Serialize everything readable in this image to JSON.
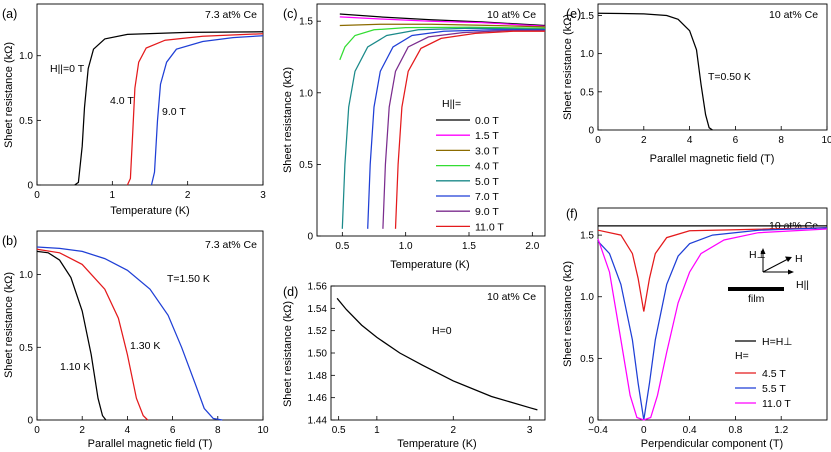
{
  "panels": {
    "a": {
      "label": "(a)",
      "corner_text": "7.3 at% Ce",
      "xlabel": "Temperature (K)",
      "ylabel": "Sheet resistance (kΩ)",
      "xlim": [
        0,
        3
      ],
      "ylim": [
        0,
        1.4
      ],
      "xticks": [
        "0",
        "1",
        "2",
        "3"
      ],
      "yticks": [
        "0",
        "0.5",
        "1.0"
      ],
      "annotations": [
        "H||=0 T",
        "4.0 T",
        "9.0 T"
      ],
      "series": [
        {
          "name": "0 T",
          "color": "#000000",
          "values": [
            [
              0.5,
              0
            ],
            [
              0.55,
              0.02
            ],
            [
              0.6,
              0.3
            ],
            [
              0.63,
              0.6
            ],
            [
              0.68,
              0.9
            ],
            [
              0.75,
              1.05
            ],
            [
              0.9,
              1.13
            ],
            [
              1.2,
              1.165
            ],
            [
              2,
              1.18
            ],
            [
              3,
              1.185
            ]
          ]
        },
        {
          "name": "4.0 T",
          "color": "#e41a1c",
          "values": [
            [
              1.2,
              0
            ],
            [
              1.24,
              0.05
            ],
            [
              1.27,
              0.4
            ],
            [
              1.3,
              0.75
            ],
            [
              1.35,
              0.95
            ],
            [
              1.45,
              1.06
            ],
            [
              1.7,
              1.12
            ],
            [
              2.2,
              1.15
            ],
            [
              3,
              1.17
            ]
          ]
        },
        {
          "name": "9.0 T",
          "color": "#1f3fd6",
          "values": [
            [
              1.52,
              0
            ],
            [
              1.56,
              0.1
            ],
            [
              1.6,
              0.5
            ],
            [
              1.64,
              0.78
            ],
            [
              1.72,
              0.95
            ],
            [
              1.85,
              1.05
            ],
            [
              2.2,
              1.11
            ],
            [
              2.6,
              1.14
            ],
            [
              3,
              1.155
            ]
          ]
        }
      ]
    },
    "b": {
      "label": "(b)",
      "corner_text": "7.3 at% Ce",
      "xlabel": "Parallel magnetic field (T)",
      "ylabel": "Sheet resistance (kΩ)",
      "xlim": [
        0,
        10
      ],
      "ylim": [
        0,
        1.3
      ],
      "xticks": [
        "0",
        "2",
        "4",
        "6",
        "8",
        "10"
      ],
      "yticks": [
        "0",
        "0.5",
        "1.0"
      ],
      "annotations": [
        "T=1.50 K",
        "1.30 K",
        "1.10 K"
      ],
      "series": [
        {
          "name": "1.10 K",
          "color": "#000000",
          "values": [
            [
              0,
              1.16
            ],
            [
              0.5,
              1.15
            ],
            [
              1,
              1.1
            ],
            [
              1.5,
              0.98
            ],
            [
              2,
              0.75
            ],
            [
              2.4,
              0.45
            ],
            [
              2.7,
              0.15
            ],
            [
              2.9,
              0.03
            ],
            [
              3.05,
              0
            ]
          ]
        },
        {
          "name": "1.30 K",
          "color": "#e41a1c",
          "values": [
            [
              0,
              1.175
            ],
            [
              1,
              1.15
            ],
            [
              2,
              1.07
            ],
            [
              3,
              0.9
            ],
            [
              3.6,
              0.7
            ],
            [
              4,
              0.45
            ],
            [
              4.4,
              0.15
            ],
            [
              4.7,
              0.03
            ],
            [
              4.9,
              0
            ]
          ]
        },
        {
          "name": "1.50 K",
          "color": "#1f3fd6",
          "values": [
            [
              0,
              1.19
            ],
            [
              1,
              1.18
            ],
            [
              2,
              1.16
            ],
            [
              3,
              1.11
            ],
            [
              4,
              1.03
            ],
            [
              5,
              0.9
            ],
            [
              5.8,
              0.72
            ],
            [
              6.4,
              0.5
            ],
            [
              7,
              0.25
            ],
            [
              7.4,
              0.08
            ],
            [
              7.8,
              0.01
            ],
            [
              8.2,
              0
            ]
          ]
        }
      ]
    },
    "c": {
      "label": "(c)",
      "corner_text": "10 at% Ce",
      "xlabel": "Temperature (K)",
      "ylabel": "Sheet resistance (kΩ)",
      "xlim": [
        0.3,
        2.1
      ],
      "ylim": [
        0,
        1.62
      ],
      "xticks": [
        "0.5",
        "1.0",
        "1.5",
        "2.0"
      ],
      "yticks": [
        "0",
        "0.5",
        "1.0",
        "1.5"
      ],
      "legend_title": "H||=",
      "series": [
        {
          "name": "0.0 T",
          "color": "#000000",
          "values": [
            [
              0.48,
              1.55
            ],
            [
              0.8,
              1.53
            ],
            [
              1.2,
              1.51
            ],
            [
              1.6,
              1.495
            ],
            [
              2.1,
              1.47
            ]
          ]
        },
        {
          "name": "1.5 T",
          "color": "#ff00ff",
          "values": [
            [
              0.48,
              1.53
            ],
            [
              0.8,
              1.515
            ],
            [
              1.2,
              1.5
            ],
            [
              1.6,
              1.49
            ],
            [
              2.1,
              1.465
            ]
          ]
        },
        {
          "name": "3.0 T",
          "color": "#8b6b00",
          "values": [
            [
              0.48,
              1.47
            ],
            [
              0.8,
              1.478
            ],
            [
              1.2,
              1.478
            ],
            [
              1.6,
              1.472
            ],
            [
              2.1,
              1.46
            ]
          ]
        },
        {
          "name": "4.0 T",
          "color": "#33dd33",
          "values": [
            [
              0.48,
              1.23
            ],
            [
              0.52,
              1.32
            ],
            [
              0.6,
              1.4
            ],
            [
              0.75,
              1.44
            ],
            [
              1.0,
              1.455
            ],
            [
              1.5,
              1.458
            ],
            [
              2.1,
              1.45
            ]
          ]
        },
        {
          "name": "5.0 T",
          "color": "#1b8a8a",
          "values": [
            [
              0.5,
              0.05
            ],
            [
              0.52,
              0.5
            ],
            [
              0.55,
              0.9
            ],
            [
              0.6,
              1.15
            ],
            [
              0.7,
              1.32
            ],
            [
              0.85,
              1.4
            ],
            [
              1.1,
              1.44
            ],
            [
              1.5,
              1.45
            ],
            [
              2.1,
              1.445
            ]
          ]
        },
        {
          "name": "7.0 T",
          "color": "#1f3fd6",
          "values": [
            [
              0.7,
              0.05
            ],
            [
              0.72,
              0.5
            ],
            [
              0.75,
              0.9
            ],
            [
              0.8,
              1.15
            ],
            [
              0.9,
              1.32
            ],
            [
              1.05,
              1.4
            ],
            [
              1.3,
              1.43
            ],
            [
              1.7,
              1.44
            ],
            [
              2.1,
              1.44
            ]
          ]
        },
        {
          "name": "9.0 T",
          "color": "#7b2d8e",
          "values": [
            [
              0.82,
              0.05
            ],
            [
              0.84,
              0.5
            ],
            [
              0.87,
              0.9
            ],
            [
              0.92,
              1.15
            ],
            [
              1.02,
              1.32
            ],
            [
              1.18,
              1.39
            ],
            [
              1.45,
              1.42
            ],
            [
              1.8,
              1.435
            ],
            [
              2.1,
              1.435
            ]
          ]
        },
        {
          "name": "11.0 T",
          "color": "#e41a1c",
          "values": [
            [
              0.92,
              0.05
            ],
            [
              0.94,
              0.5
            ],
            [
              0.97,
              0.9
            ],
            [
              1.02,
              1.15
            ],
            [
              1.12,
              1.31
            ],
            [
              1.28,
              1.38
            ],
            [
              1.55,
              1.415
            ],
            [
              1.85,
              1.43
            ],
            [
              2.1,
              1.43
            ]
          ]
        }
      ]
    },
    "d": {
      "label": "(d)",
      "corner_text": "10 at% Ce",
      "xlabel": "Temperature (K)",
      "ylabel": "Sheet resistance (kΩ)",
      "xlim": [
        0.4,
        3.2
      ],
      "ylim": [
        1.44,
        1.56
      ],
      "xticks": [
        "0.5",
        "1",
        "2",
        "3"
      ],
      "yticks": [
        "1.44",
        "1.46",
        "1.48",
        "1.50",
        "1.52",
        "1.54",
        "1.56"
      ],
      "annotations": [
        "H=0"
      ],
      "series": [
        {
          "name": "H=0",
          "color": "#000000",
          "values": [
            [
              0.48,
              1.549
            ],
            [
              0.6,
              1.539
            ],
            [
              0.8,
              1.525
            ],
            [
              1.0,
              1.514
            ],
            [
              1.3,
              1.5
            ],
            [
              1.6,
              1.489
            ],
            [
              2.0,
              1.475
            ],
            [
              2.5,
              1.461
            ],
            [
              3.0,
              1.451
            ],
            [
              3.1,
              1.449
            ]
          ]
        }
      ]
    },
    "e": {
      "label": "(e)",
      "corner_text": "10 at% Ce",
      "xlabel": "Parallel magnetic field (T)",
      "ylabel": "Sheet resistance (kΩ)",
      "xlim": [
        0,
        10
      ],
      "ylim": [
        0,
        1.65
      ],
      "xticks": [
        "0",
        "2",
        "4",
        "6",
        "8",
        "10"
      ],
      "yticks": [
        "0",
        "0.5",
        "1.0",
        "1.5"
      ],
      "annotations": [
        "T=0.50 K"
      ],
      "series": [
        {
          "name": "0.50 K",
          "color": "#000000",
          "values": [
            [
              0,
              1.53
            ],
            [
              1,
              1.525
            ],
            [
              2,
              1.52
            ],
            [
              3,
              1.5
            ],
            [
              3.5,
              1.45
            ],
            [
              4,
              1.3
            ],
            [
              4.3,
              1.05
            ],
            [
              4.5,
              0.6
            ],
            [
              4.7,
              0.2
            ],
            [
              4.85,
              0.03
            ],
            [
              5,
              0
            ]
          ]
        }
      ]
    },
    "f": {
      "label": "(f)",
      "corner_text": "10 at% Ce",
      "xlabel": "Perpendicular component (T)",
      "ylabel": "Sheet resistance (kΩ)",
      "xlim": [
        -0.4,
        1.6
      ],
      "ylim": [
        0,
        1.72
      ],
      "xticks": [
        "−0.4",
        "0",
        "0.4",
        "0.8",
        "1.2"
      ],
      "yticks": [
        "0",
        "0.5",
        "1.0",
        "1.5"
      ],
      "legend": {
        "perp_label": "H=H⊥",
        "title": "H=",
        "entries": [
          "4.5 T",
          "5.5 T",
          "11.0 T"
        ]
      },
      "inset": {
        "h_perp": "H⊥",
        "h": "H",
        "h_par": "H||",
        "film": "film"
      },
      "series": [
        {
          "name": "H=H⊥",
          "color": "#000000",
          "values": [
            [
              -0.4,
              1.575
            ],
            [
              1.6,
              1.575
            ]
          ]
        },
        {
          "name": "4.5 T",
          "color": "#e41a1c",
          "values": [
            [
              -0.4,
              1.54
            ],
            [
              -0.2,
              1.5
            ],
            [
              -0.1,
              1.35
            ],
            [
              -0.05,
              1.15
            ],
            [
              0,
              0.88
            ],
            [
              0.05,
              1.15
            ],
            [
              0.1,
              1.35
            ],
            [
              0.2,
              1.48
            ],
            [
              0.4,
              1.535
            ],
            [
              1.6,
              1.56
            ]
          ]
        },
        {
          "name": "5.5 T",
          "color": "#1f3fd6",
          "values": [
            [
              -0.4,
              1.45
            ],
            [
              -0.3,
              1.35
            ],
            [
              -0.2,
              1.1
            ],
            [
              -0.1,
              0.65
            ],
            [
              -0.05,
              0.3
            ],
            [
              0,
              0
            ],
            [
              0.05,
              0.3
            ],
            [
              0.1,
              0.65
            ],
            [
              0.2,
              1.1
            ],
            [
              0.3,
              1.33
            ],
            [
              0.4,
              1.43
            ],
            [
              0.6,
              1.5
            ],
            [
              1.0,
              1.54
            ],
            [
              1.6,
              1.56
            ]
          ]
        },
        {
          "name": "11.0 T",
          "color": "#ff00ff",
          "values": [
            [
              -0.4,
              1.47
            ],
            [
              -0.3,
              1.2
            ],
            [
              -0.2,
              0.65
            ],
            [
              -0.12,
              0.2
            ],
            [
              -0.06,
              0.02
            ],
            [
              0,
              0
            ],
            [
              0.06,
              0.02
            ],
            [
              0.12,
              0.2
            ],
            [
              0.2,
              0.55
            ],
            [
              0.3,
              0.95
            ],
            [
              0.4,
              1.2
            ],
            [
              0.5,
              1.35
            ],
            [
              0.7,
              1.46
            ],
            [
              1.0,
              1.52
            ],
            [
              1.6,
              1.55
            ]
          ]
        }
      ]
    }
  }
}
